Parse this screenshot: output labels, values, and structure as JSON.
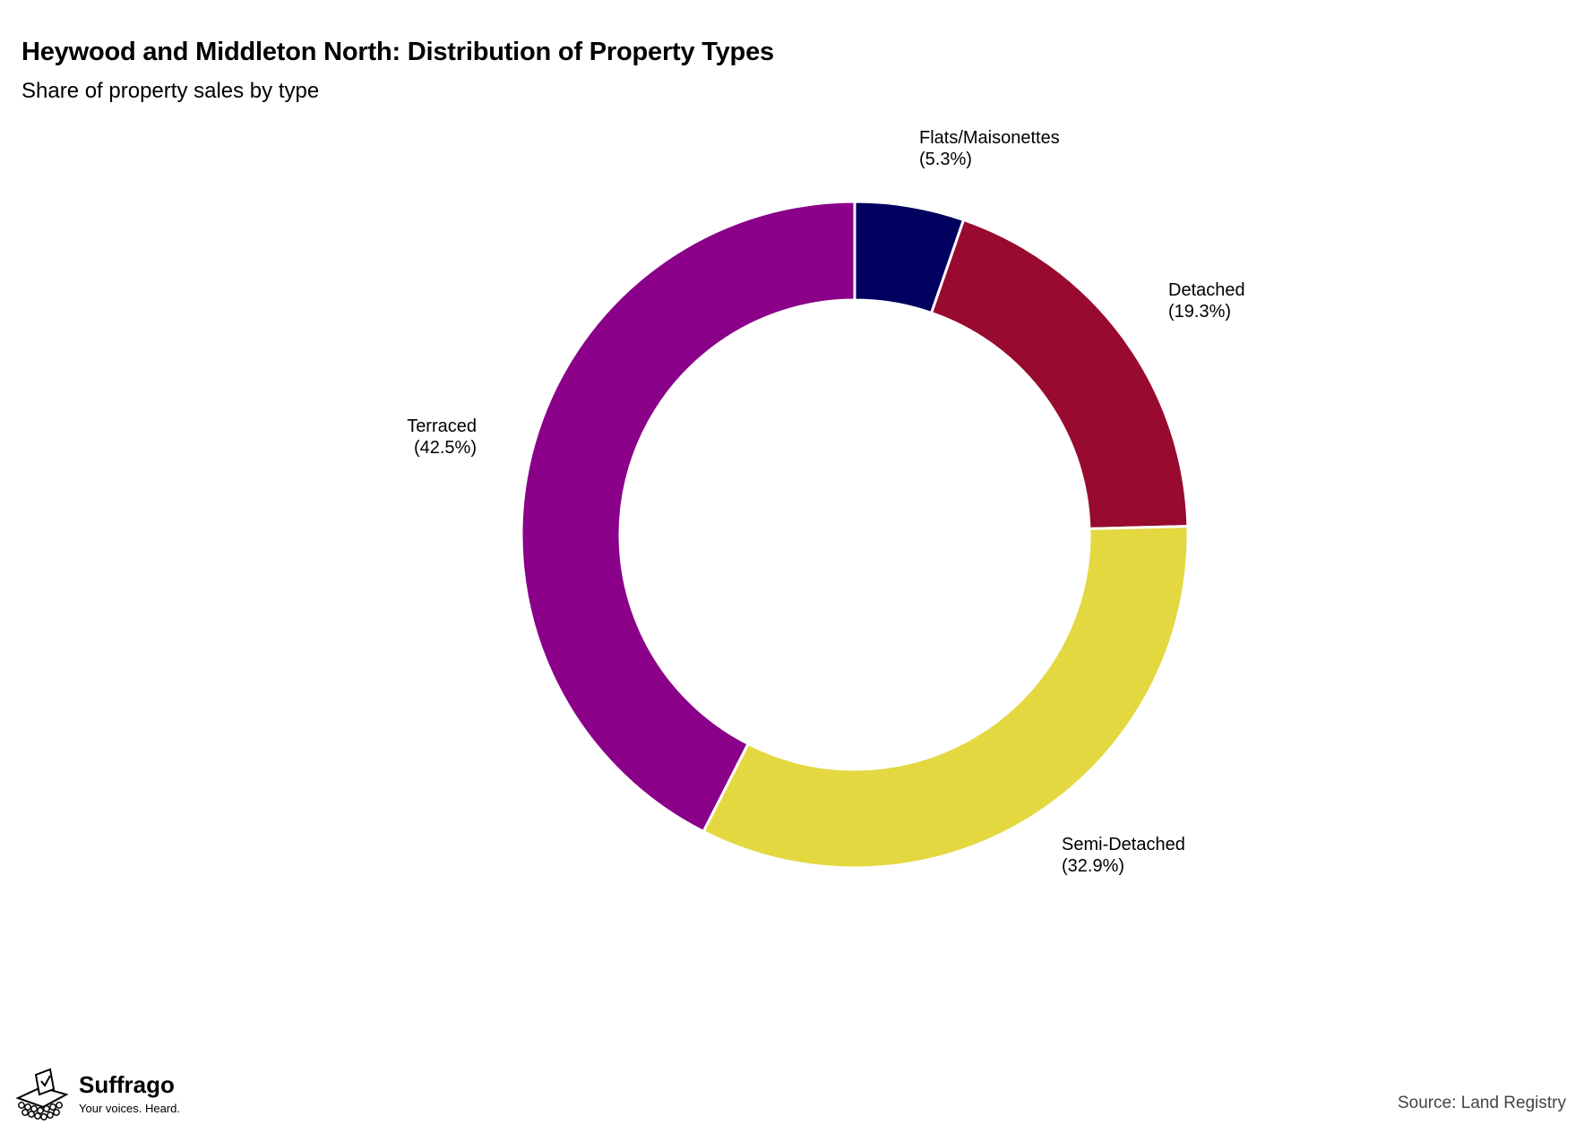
{
  "chart_data": {
    "type": "pie",
    "variant": "donut",
    "title": "Heywood and Middleton North: Distribution of Property Types",
    "subtitle": "Share of property sales by type",
    "unit": "%",
    "slices": [
      {
        "label": "Flats/Maisonettes",
        "value": 5.3,
        "value_label": "(5.3%)",
        "color": "#00005f"
      },
      {
        "label": "Detached",
        "value": 19.3,
        "value_label": "(19.3%)",
        "color": "#990a30"
      },
      {
        "label": "Semi-Detached",
        "value": 32.9,
        "value_label": "(32.9%)",
        "color": "#e3d840"
      },
      {
        "label": "Terraced",
        "value": 42.5,
        "value_label": "(42.5%)",
        "color": "#8a0089"
      }
    ],
    "start_angle": "12 o'clock",
    "direction": "clockwise",
    "legend": "none (labels placed outside each slice)"
  },
  "branding": {
    "name": "Suffrago",
    "tagline": "Your voices. Heard.",
    "icon": "ballot-box-icon"
  },
  "footer": {
    "source": "Source: Land Registry"
  }
}
